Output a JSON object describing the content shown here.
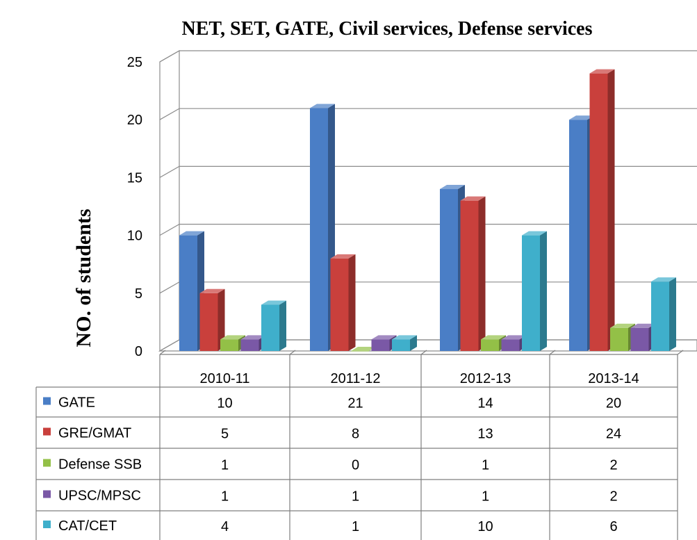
{
  "chart_data": {
    "type": "bar",
    "title": "NET, SET, GATE, Civil services, Defense services",
    "ylabel": "NO. of students",
    "xlabel": "",
    "ylim": [
      0,
      25
    ],
    "yticks": [
      0,
      5,
      10,
      15,
      20,
      25
    ],
    "grid": true,
    "legend": "data-table",
    "categories": [
      "2010-11",
      "2011-12",
      "2012-13",
      "2013-14"
    ],
    "series": [
      {
        "name": "GATE",
        "values": [
          10,
          21,
          14,
          20
        ],
        "color": "#4A7EC6"
      },
      {
        "name": "GRE/GMAT",
        "values": [
          5,
          8,
          13,
          24
        ],
        "color": "#C9403C"
      },
      {
        "name": "Defense SSB",
        "values": [
          1,
          0,
          1,
          2
        ],
        "color": "#93C047"
      },
      {
        "name": "UPSC/MPSC",
        "values": [
          1,
          1,
          1,
          2
        ],
        "color": "#7A58A6"
      },
      {
        "name": "CAT/CET",
        "values": [
          4,
          1,
          10,
          6
        ],
        "color": "#3FAFCB"
      }
    ]
  }
}
